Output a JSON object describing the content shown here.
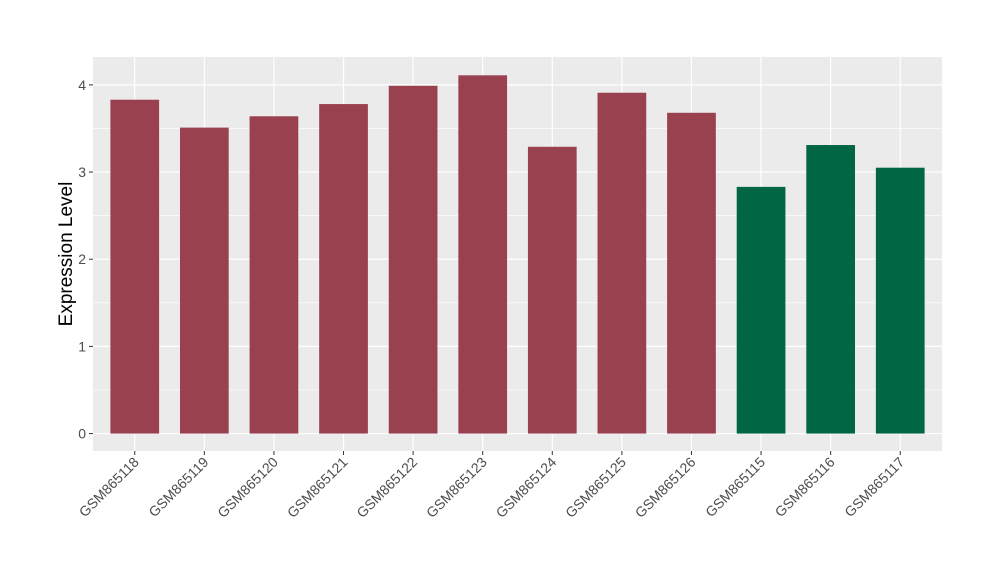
{
  "chart_data": {
    "type": "bar",
    "title": "",
    "xlabel": "",
    "ylabel": "Expression Level",
    "categories": [
      "GSM865118",
      "GSM865119",
      "GSM865120",
      "GSM865121",
      "GSM865122",
      "GSM865123",
      "GSM865124",
      "GSM865125",
      "GSM865126",
      "GSM865115",
      "GSM865116",
      "GSM865117"
    ],
    "values": [
      3.83,
      3.51,
      3.64,
      3.78,
      3.99,
      4.11,
      3.29,
      3.91,
      3.68,
      2.83,
      3.31,
      3.05
    ],
    "bar_colors": [
      "#9a4150",
      "#9a4150",
      "#9a4150",
      "#9a4150",
      "#9a4150",
      "#9a4150",
      "#9a4150",
      "#9a4150",
      "#9a4150",
      "#006644",
      "#006644",
      "#006644"
    ],
    "yticks": [
      0,
      1,
      2,
      3,
      4
    ],
    "ylim": [
      -0.2,
      4.32
    ],
    "grid": true,
    "panel_background": "#ebebeb"
  }
}
